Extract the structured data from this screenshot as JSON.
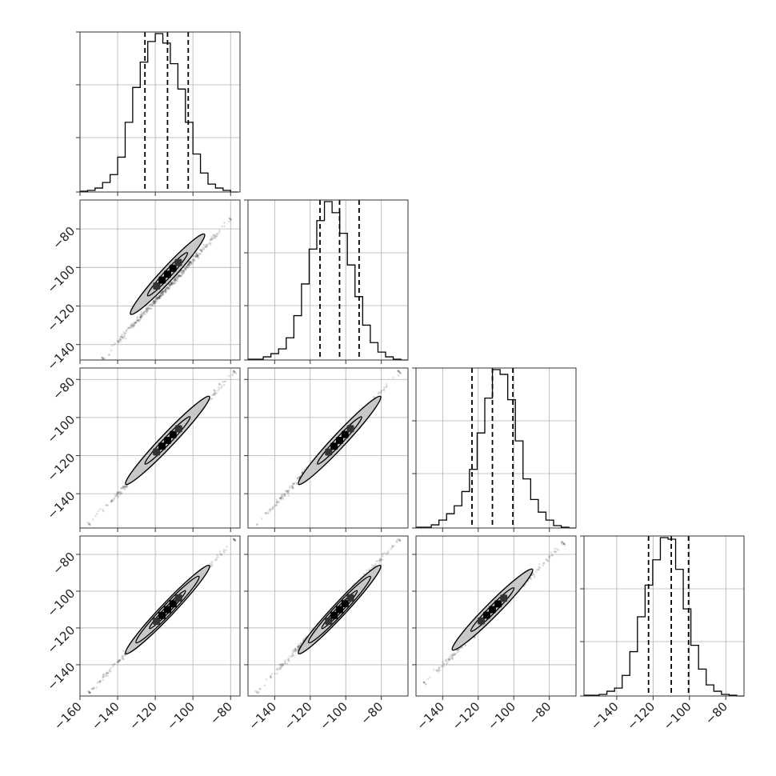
{
  "chart_data": {
    "type": "corner",
    "style": {
      "background": "#ffffff",
      "grid": true,
      "grid_color": "#b0b0b0",
      "line_color": "#000000",
      "frame_color": "#333333",
      "contour_fill": "#c8c8c8",
      "hist_line_style": "step",
      "quantile_line_style": "dashed"
    },
    "parameters": [
      {
        "xlim": [
          -160,
          -75
        ],
        "ylim": [
          -158,
          -70
        ],
        "quantile_values": [
          -125.5,
          -113.5,
          -102.5
        ]
      },
      {
        "xlim": [
          -155,
          -65
        ],
        "ylim": [
          -148,
          -65
        ],
        "quantile_values": [
          -114.5,
          -103.5,
          -92.5
        ]
      },
      {
        "xlim": [
          -155,
          -65
        ],
        "ylim": [
          -158,
          -74
        ],
        "quantile_values": [
          -123.5,
          -112,
          -100.5
        ]
      },
      {
        "xlim": [
          -158,
          -70
        ],
        "ylim": [
          -157,
          -70
        ],
        "quantile_values": [
          -122.5,
          -110,
          -100.5
        ]
      }
    ],
    "x_tick_labels": [
      [
        "−160",
        "−140",
        "−120",
        "−100",
        "−80"
      ],
      [
        "−140",
        "−120",
        "−100",
        "−80"
      ],
      [
        "−140",
        "−120",
        "−100",
        "−80"
      ],
      [
        "−140",
        "−120",
        "−100",
        "−80"
      ]
    ],
    "x_tick_values": [
      [
        -160,
        -140,
        -120,
        -100,
        -80
      ],
      [
        -140,
        -120,
        -100,
        -80
      ],
      [
        -140,
        -120,
        -100,
        -80
      ],
      [
        -140,
        -120,
        -100,
        -80
      ]
    ],
    "y_tick_labels": {
      "1": [
        "−80",
        "−100",
        "−120",
        "−140"
      ],
      "2": [
        "−80",
        "−100",
        "−120",
        "−140"
      ],
      "3": [
        "−80",
        "−100",
        "−120",
        "−140"
      ]
    },
    "y_tick_values": {
      "1": [
        -80,
        -100,
        -120,
        -140
      ],
      "2": [
        -80,
        -100,
        -120,
        -140
      ],
      "3": [
        -80,
        -100,
        -120,
        -140
      ]
    },
    "histograms": [
      {
        "bin_edges": [
          -160,
          -156,
          -152,
          -148,
          -144,
          -140,
          -136,
          -132,
          -128,
          -124,
          -120,
          -116,
          -112,
          -108,
          -104,
          -100,
          -96,
          -92,
          -88,
          -84,
          -80,
          -76
        ],
        "counts": [
          0.5,
          1,
          2.5,
          6,
          11,
          22,
          44,
          66,
          82,
          95,
          100,
          94,
          81,
          65,
          44,
          24,
          12,
          5,
          2.5,
          1,
          0
        ]
      },
      {
        "bin_edges": [
          -155,
          -150.7,
          -146.4,
          -142.1,
          -137.8,
          -133.5,
          -129.2,
          -124.9,
          -120.6,
          -116.3,
          -112,
          -107.7,
          -103.4,
          -99.1,
          -94.8,
          -90.5,
          -86.2,
          -81.9,
          -77.6,
          -73.3,
          -69,
          -65
        ],
        "counts": [
          0.5,
          0.5,
          2,
          4,
          7,
          14,
          28,
          48,
          70,
          88,
          100,
          93,
          80,
          60,
          40,
          22,
          11,
          5,
          2,
          0.5,
          0
        ]
      },
      {
        "bin_edges": [
          -155,
          -150.7,
          -146.4,
          -142.1,
          -137.8,
          -133.5,
          -129.2,
          -124.9,
          -120.6,
          -116.3,
          -112,
          -107.7,
          -103.4,
          -99.1,
          -94.8,
          -90.5,
          -86.2,
          -81.9,
          -77.6,
          -73.3,
          -69,
          -65
        ],
        "counts": [
          0.5,
          0.5,
          2,
          5,
          9,
          14,
          23,
          37,
          60,
          82,
          100,
          97,
          81,
          55,
          31,
          18,
          10,
          5,
          1.5,
          0.5,
          0
        ]
      },
      {
        "bin_edges": [
          -158,
          -153.8,
          -149.6,
          -145.4,
          -141.2,
          -137,
          -132.8,
          -128.6,
          -124.4,
          -120.2,
          -116,
          -111.8,
          -107.6,
          -103.4,
          -99.2,
          -95,
          -90.8,
          -86.6,
          -82.4,
          -78.2,
          -74,
          -70
        ],
        "counts": [
          0.5,
          0.5,
          1,
          3,
          5,
          13,
          28,
          50,
          70,
          86,
          100,
          99,
          80,
          55,
          32,
          17,
          7,
          3,
          1,
          0.5,
          0
        ]
      }
    ],
    "scatter_2d": [
      {
        "row": 1,
        "col": 0,
        "x_range": [
          -148,
          -80
        ],
        "y_range": [
          -147,
          -75
        ],
        "mean": [
          -113.5,
          -103.5
        ],
        "levels": [
          0.5,
          0.93
        ]
      },
      {
        "row": 2,
        "col": 0,
        "x_range": [
          -155,
          -78
        ],
        "y_range": [
          -156,
          -76
        ],
        "mean": [
          -113.5,
          -112
        ],
        "levels": [
          0.5,
          0.93
        ]
      },
      {
        "row": 2,
        "col": 1,
        "x_range": [
          -150,
          -70
        ],
        "y_range": [
          -156,
          -76
        ],
        "mean": [
          -103.5,
          -112
        ],
        "levels": [
          0.5,
          0.93
        ]
      },
      {
        "row": 3,
        "col": 0,
        "x_range": [
          -155,
          -78
        ],
        "y_range": [
          -155,
          -72
        ],
        "mean": [
          -113.5,
          -110
        ],
        "levels": [
          0.4,
          0.7,
          0.93
        ]
      },
      {
        "row": 3,
        "col": 1,
        "x_range": [
          -150,
          -70
        ],
        "y_range": [
          -155,
          -72
        ],
        "mean": [
          -103.5,
          -110
        ],
        "levels": [
          0.4,
          0.7,
          0.93
        ]
      },
      {
        "row": 3,
        "col": 2,
        "x_range": [
          -150,
          -72
        ],
        "y_range": [
          -150,
          -74
        ],
        "mean": [
          -112,
          -110
        ],
        "levels": [
          0.5,
          0.93
        ]
      }
    ]
  }
}
